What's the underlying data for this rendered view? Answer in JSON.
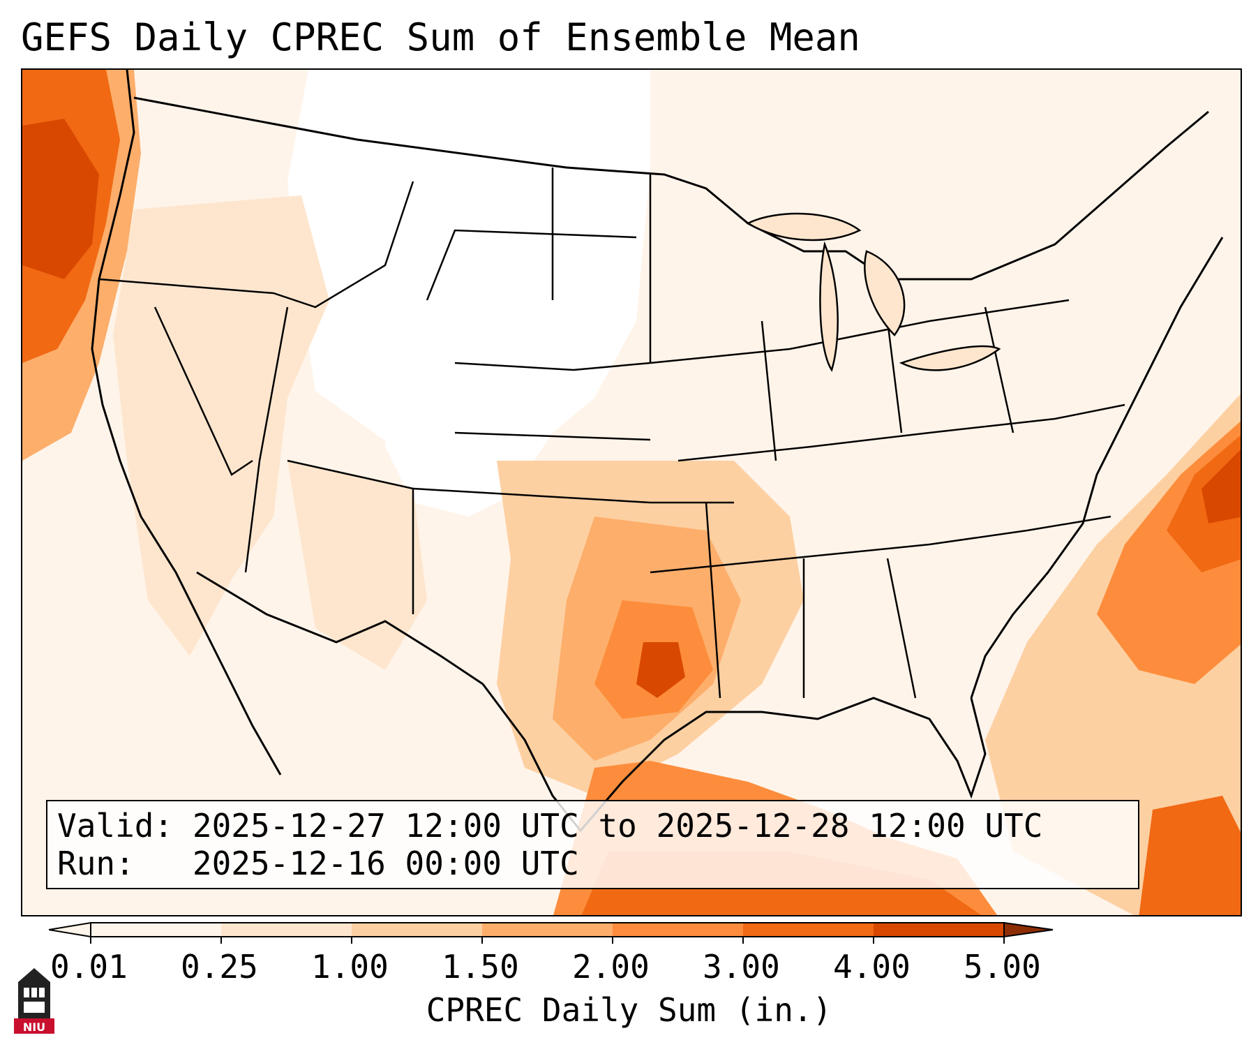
{
  "title": "GEFS Daily CPREC Sum of Ensemble Mean",
  "info": {
    "valid_label": "Valid:",
    "valid_value": "2025-12-27 12:00 UTC to 2025-12-28 12:00 UTC",
    "run_label": "Run:",
    "run_value": "2025-12-16 00:00 UTC"
  },
  "colorbar": {
    "label": "CPREC Daily Sum (in.)",
    "ticks": [
      "0.01",
      "0.25",
      "1.00",
      "1.50",
      "2.00",
      "3.00",
      "4.00",
      "5.00"
    ],
    "colors": [
      "#fff5eb",
      "#fee6ce",
      "#fdd0a2",
      "#fdae6b",
      "#fd8d3c",
      "#f16913",
      "#d94801",
      "#8c2d04"
    ],
    "extend": "both"
  },
  "logo": {
    "text": "NIU",
    "color": "#c8102e"
  },
  "map": {
    "type": "precipitation-field",
    "region": "CONUS",
    "colors": {
      "ocean": "#fff4ea",
      "light": "#fee6ce",
      "medium": "#fdd0a2",
      "moderate": "#fdae6b",
      "heavy": "#fd8d3c",
      "veryheavy": "#f16913",
      "extreme": "#d94801",
      "max": "#8c2d04",
      "dry": "#ffffff"
    }
  }
}
